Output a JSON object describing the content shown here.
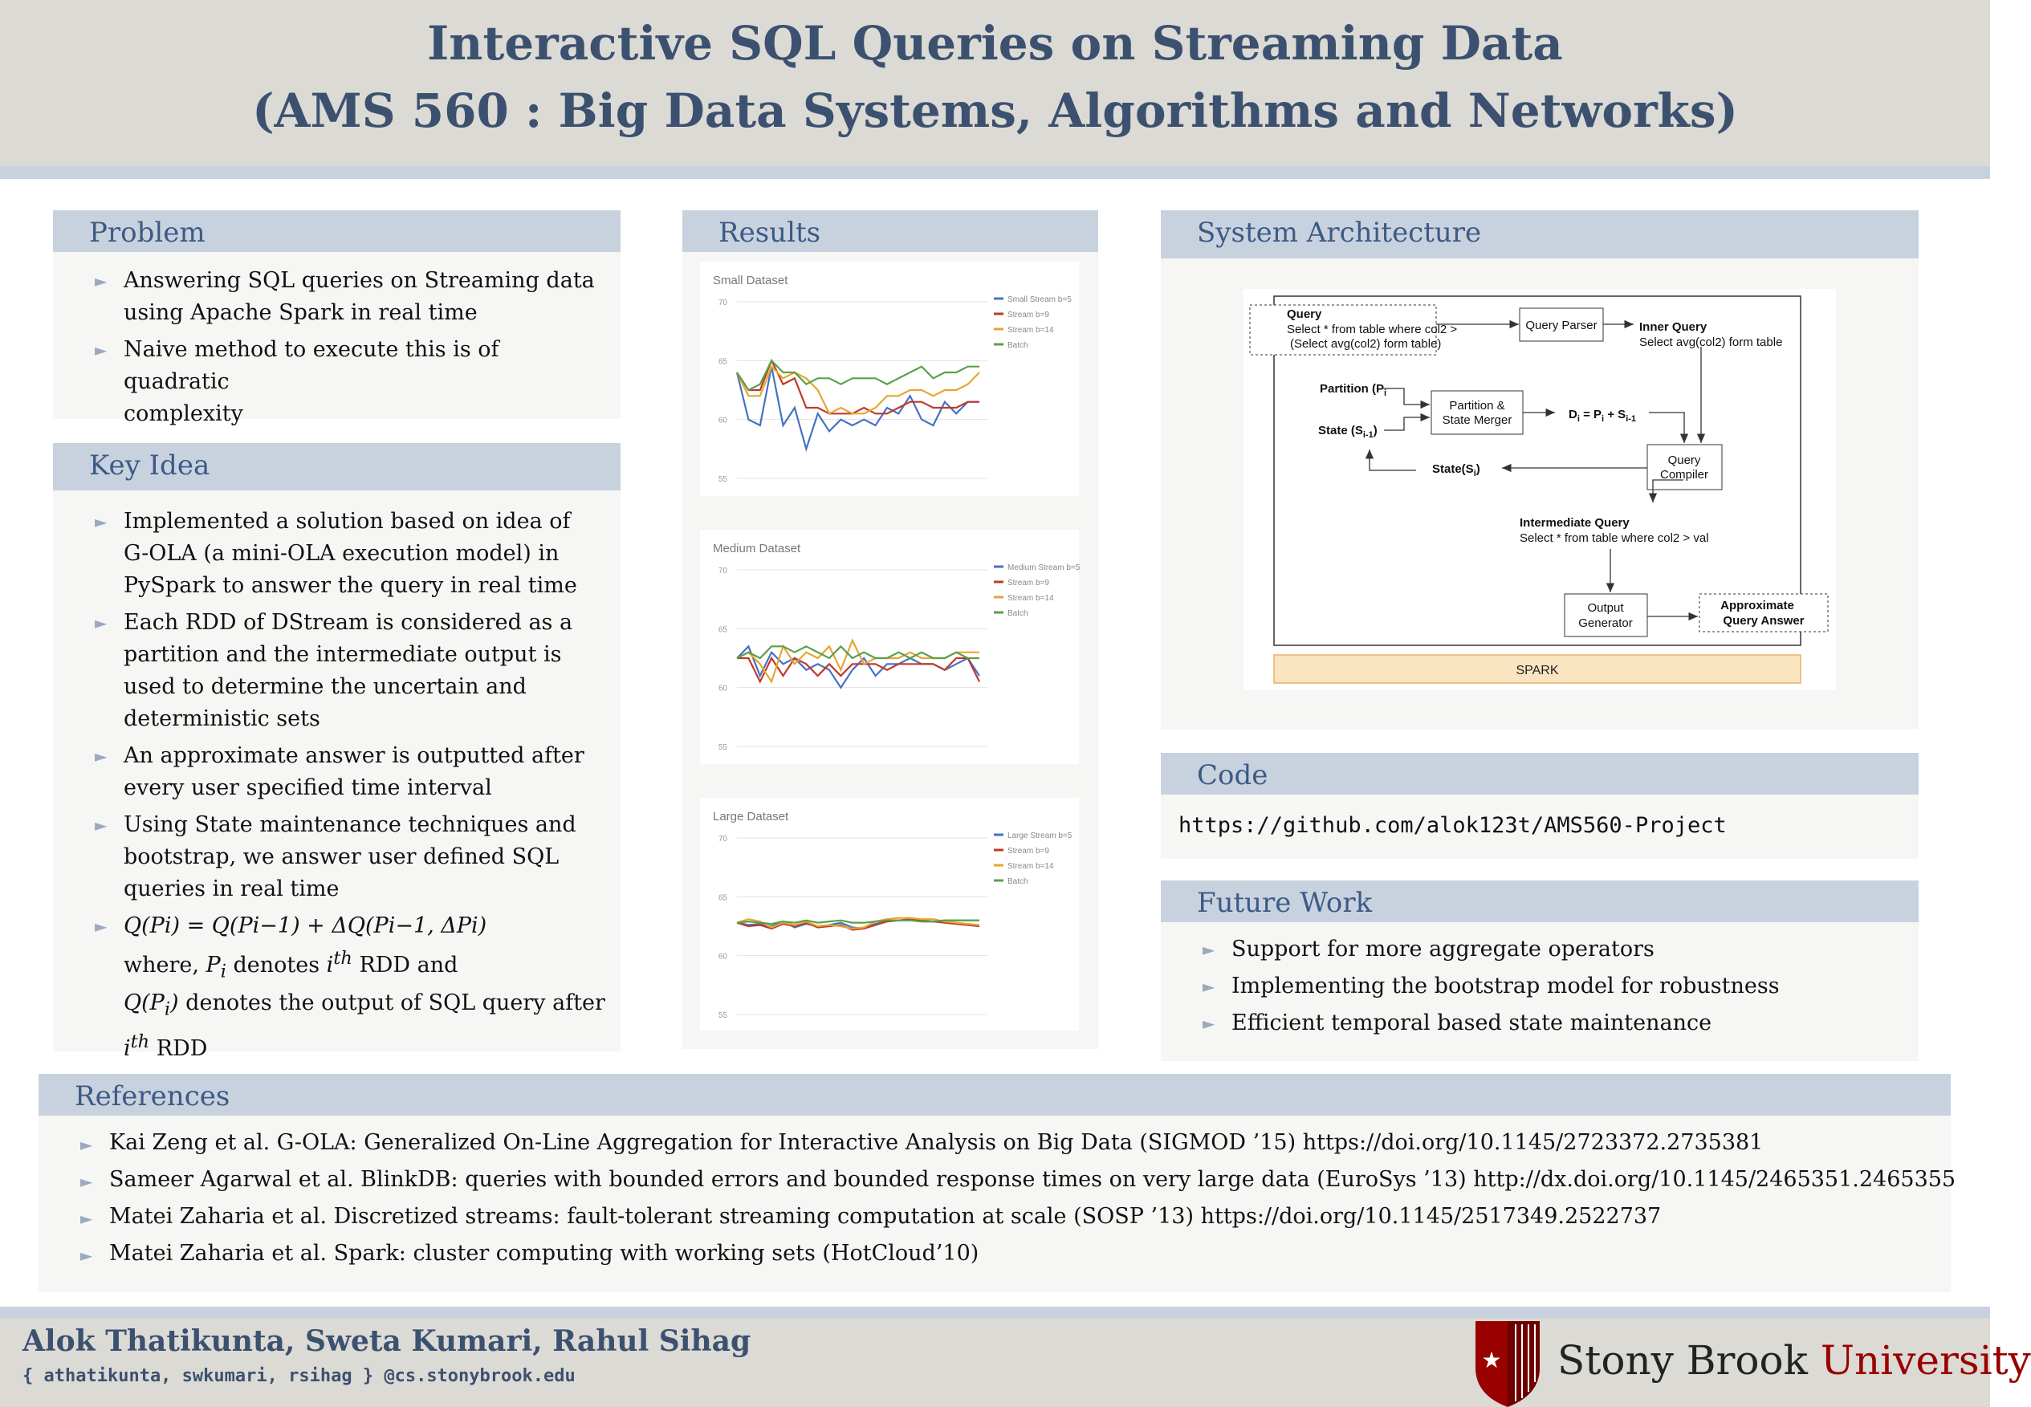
{
  "header": {
    "title_line1": "Interactive SQL Queries on Streaming Data",
    "title_line2": "(AMS 560 : Big Data Systems, Algorithms and Networks)"
  },
  "problem": {
    "heading": "Problem",
    "items": [
      [
        "Answering SQL queries on Streaming data",
        "using Apache Spark in real time"
      ],
      [
        "Naive method to execute this is of quadratic",
        "complexity"
      ]
    ]
  },
  "key_idea": {
    "heading": "Key Idea",
    "items": [
      [
        "Implemented a solution based on idea of",
        "G-OLA (a mini-OLA execution model) in",
        "PySpark to answer the query in real time"
      ],
      [
        "Each RDD of DStream is considered as a",
        "partition and the intermediate output is",
        "used to determine the uncertain and",
        "deterministic sets"
      ],
      [
        "An approximate answer is outputted after",
        "every user specified time interval"
      ],
      [
        "Using State maintenance techniques and",
        "bootstrap, we answer user defined SQL",
        "queries in real time"
      ]
    ],
    "formula": {
      "line1": "Q(Pi) = Q(Pi−1) + ΔQ(Pi−1, ΔPi)",
      "where_prefix": "where, ",
      "denotes_ith": " denotes ",
      "rdd_and": " RDD and",
      "line3_suffix": " denotes the output of SQL query after",
      "rdd": " RDD"
    }
  },
  "results": {
    "heading": "Results"
  },
  "chart_data": [
    {
      "type": "line",
      "title": "Small Dataset",
      "ylim": [
        55,
        70
      ],
      "yticks": [
        55,
        60,
        65,
        70
      ],
      "grid": true,
      "legend_position": "top-right",
      "x": [
        1,
        2,
        3,
        4,
        5,
        6,
        7,
        8,
        9,
        10,
        11,
        12,
        13,
        14,
        15,
        16,
        17,
        18,
        19,
        20,
        21,
        22
      ],
      "series": [
        {
          "name": "Small Stream b=5",
          "color": "#4472c4",
          "values": [
            64,
            60,
            59.5,
            64.5,
            59.5,
            61,
            57.5,
            60.5,
            59,
            60,
            59.5,
            60,
            59.5,
            61,
            60.5,
            62,
            60,
            59.5,
            61.5,
            60.5,
            61.5,
            61.5
          ]
        },
        {
          "name": "Stream b=9",
          "color": "#c0392b",
          "values": [
            64,
            62.5,
            62.5,
            65,
            63,
            63.5,
            61,
            61,
            60.5,
            60.5,
            60.5,
            61,
            60.5,
            60.5,
            61,
            61.5,
            61.5,
            61,
            61,
            61,
            61.5,
            61.5
          ]
        },
        {
          "name": "Stream b=14",
          "color": "#e6a630",
          "values": [
            64,
            62,
            62,
            64.5,
            63.5,
            64,
            63.5,
            62.5,
            60.5,
            61,
            60.5,
            60.5,
            61,
            62,
            62,
            62.5,
            62.5,
            62,
            62.5,
            62.5,
            63,
            64
          ]
        },
        {
          "name": "Batch",
          "color": "#5aa04a",
          "values": [
            64,
            62.5,
            63,
            65,
            64,
            64,
            63,
            63.5,
            63.5,
            63,
            63.5,
            63.5,
            63.5,
            63,
            63.5,
            64,
            64.5,
            63.5,
            64,
            64,
            64.5,
            64.5
          ]
        }
      ]
    },
    {
      "type": "line",
      "title": "Medium Dataset",
      "ylim": [
        55,
        70
      ],
      "yticks": [
        55,
        60,
        65,
        70
      ],
      "grid": true,
      "legend_position": "top-right",
      "x": [
        1,
        2,
        3,
        4,
        5,
        6,
        7,
        8,
        9,
        10,
        11,
        12,
        13,
        14,
        15,
        16,
        17,
        18,
        19,
        20,
        21,
        22
      ],
      "series": [
        {
          "name": "Medium Stream b=5",
          "color": "#4472c4",
          "values": [
            62.5,
            63.5,
            61,
            63,
            62,
            62.5,
            61.5,
            62,
            61.5,
            60,
            61.5,
            62.5,
            61,
            62,
            62,
            62.5,
            62,
            62,
            61.5,
            62,
            62.5,
            61
          ]
        },
        {
          "name": "Stream b=9",
          "color": "#c0392b",
          "values": [
            62.5,
            62.5,
            60.5,
            62.5,
            61,
            62.5,
            62,
            61,
            62,
            61,
            62,
            62,
            62,
            61.5,
            62,
            62,
            62,
            62,
            61.5,
            62.5,
            62.5,
            60.5
          ]
        },
        {
          "name": "Stream b=14",
          "color": "#e6a630",
          "values": [
            62.5,
            63,
            62,
            60.5,
            63.5,
            62,
            63,
            62.5,
            63.5,
            61.5,
            64,
            62,
            62.5,
            62.5,
            62.5,
            63,
            62.5,
            62.5,
            62.5,
            63,
            63,
            63
          ]
        },
        {
          "name": "Batch",
          "color": "#5aa04a",
          "values": [
            62.5,
            63,
            62.5,
            63.5,
            63.5,
            63,
            63.5,
            63,
            62.5,
            63.5,
            62.5,
            63,
            62.5,
            62.5,
            63,
            62.5,
            63,
            62.5,
            62.5,
            63,
            62.5,
            62.5
          ]
        }
      ]
    },
    {
      "type": "line",
      "title": "Large Dataset",
      "ylim": [
        55,
        70
      ],
      "yticks": [
        55,
        60,
        65,
        70
      ],
      "grid": true,
      "legend_position": "top-right",
      "x": [
        1,
        2,
        3,
        4,
        5,
        6,
        7,
        8,
        9,
        10,
        11,
        12,
        13,
        14,
        15,
        16,
        17,
        18,
        19,
        20,
        21,
        22
      ],
      "series": [
        {
          "name": "Large Stream b=5",
          "color": "#4472c4",
          "values": [
            62.8,
            62.6,
            62.7,
            62.5,
            62.9,
            62.4,
            62.7,
            62.5,
            62.6,
            62.8,
            62.4,
            62.3,
            62.7,
            62.9,
            63,
            63,
            62.9,
            62.9,
            63,
            63,
            63,
            63
          ]
        },
        {
          "name": "Stream b=9",
          "color": "#c0392b",
          "values": [
            62.8,
            62.5,
            62.6,
            62.3,
            62.7,
            62.5,
            62.8,
            62.4,
            62.5,
            62.6,
            62.2,
            62.3,
            62.6,
            62.9,
            63,
            63.1,
            63,
            62.9,
            62.8,
            62.7,
            62.6,
            62.5
          ]
        },
        {
          "name": "Stream b=14",
          "color": "#e6a630",
          "values": [
            62.8,
            63.1,
            62.9,
            62.4,
            62.8,
            62.6,
            62.9,
            62.5,
            62.6,
            62.5,
            62.3,
            62.4,
            62.9,
            63.1,
            63.2,
            63.2,
            63.1,
            63.1,
            62.9,
            62.8,
            62.7,
            62.6
          ]
        },
        {
          "name": "Batch",
          "color": "#5aa04a",
          "values": [
            62.8,
            62.9,
            62.8,
            62.7,
            62.9,
            62.8,
            63,
            62.8,
            62.9,
            63,
            62.8,
            62.8,
            62.9,
            63,
            63,
            63,
            62.9,
            62.9,
            63,
            63,
            63,
            63
          ]
        }
      ]
    }
  ],
  "architecture": {
    "heading": "System Architecture",
    "query_label": "Query",
    "query_line1": "Select * from table where col2 >",
    "query_line2": "(Select avg(col2) form table)",
    "query_parser": "Query Parser",
    "inner_query_label": "Inner Query",
    "inner_query_text": "Select avg(col2) form table",
    "partition_label": "Partition (P",
    "partition_sub": "i",
    "state_prev_label": "State (S",
    "state_prev_sub": "i-1",
    "state_prev_close": ")",
    "merger_line1": "Partition &",
    "merger_line2": "State Merger",
    "di_d": "D",
    "di_mid": " = P",
    "di_plus": " + S",
    "sub_i": "i",
    "sub_i_minus_1": "i-1",
    "compiler_line1": "Query",
    "compiler_line2": "Compiler",
    "state_label": "State(S",
    "state_sub": "i",
    "state_close": ")",
    "intermediate_label": "Intermediate Query",
    "intermediate_text": "Select * from table where col2 > val",
    "output_line1": "Output",
    "output_line2": "Generator",
    "approx_line1": "Approximate",
    "approx_line2": "Query Answer",
    "spark": "SPARK"
  },
  "code": {
    "heading": "Code",
    "url": "https://github.com/alok123t/AMS560-Project"
  },
  "future_work": {
    "heading": "Future Work",
    "items": [
      "Support for more aggregate operators",
      "Implementing the bootstrap model for robustness",
      "Efficient temporal based state maintenance"
    ]
  },
  "references": {
    "heading": "References",
    "items": [
      "Kai Zeng et al. G-OLA: Generalized On-Line Aggregation for Interactive Analysis on Big Data (SIGMOD ’15) https://doi.org/10.1145/2723372.2735381",
      "Sameer Agarwal et al. BlinkDB: queries with bounded errors and bounded response times on very large data (EuroSys ’13) http://dx.doi.org/10.1145/2465351.2465355",
      "Matei Zaharia et al. Discretized streams: fault-tolerant streaming computation at scale (SOSP ’13) https://doi.org/10.1145/2517349.2522737",
      "Matei Zaharia et al. Spark: cluster computing with working sets (HotCloud’10)"
    ]
  },
  "footer": {
    "authors": "Alok Thatikunta, Sweta Kumari, Rahul Sihag",
    "emails": "{ athatikunta, swkumari, rsihag } @cs.stonybrook.edu",
    "logo_word1": "Stony Brook ",
    "logo_word2": "University"
  },
  "colors": {
    "title": "#3c5170",
    "header_bg": "#dcdad5",
    "block_head": "#c8d2df",
    "block_bg": "#f6f6f4",
    "heading_text": "#3c5a85",
    "logo_red": "#990000"
  }
}
